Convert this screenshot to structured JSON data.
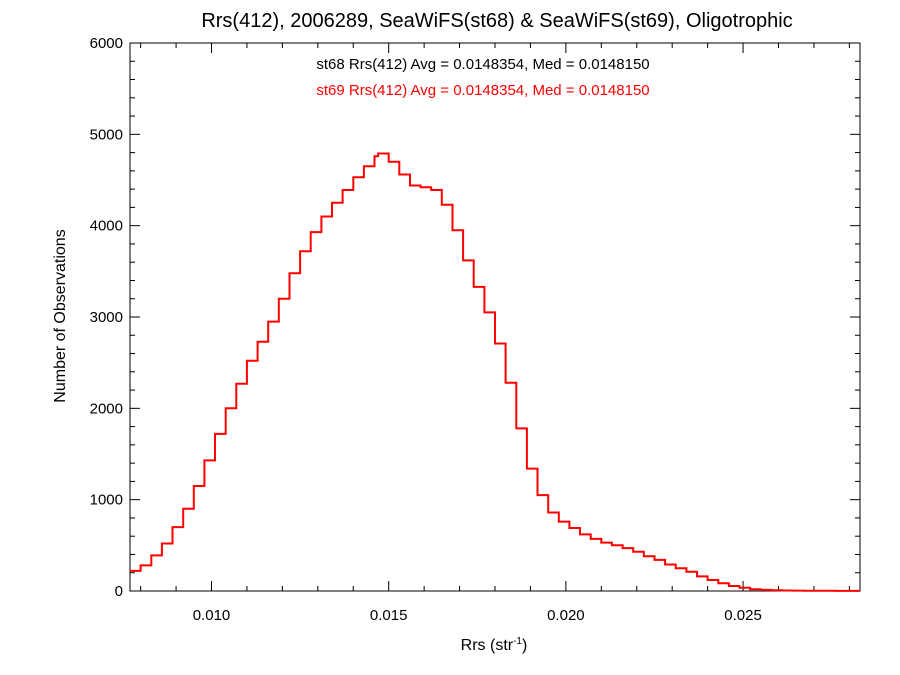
{
  "chart_data": {
    "type": "histogram-step",
    "title": "Rrs(412), 2006289, SeaWiFS(st68) & SeaWiFS(st69), Oligotrophic",
    "xlabel": "Rrs (str",
    "xlabel_sup": "-1",
    "xlabel_close": ")",
    "ylabel": "Number of Observations",
    "xlim": [
      0.0077,
      0.0283
    ],
    "ylim": [
      0,
      6000
    ],
    "x_ticks": [
      0.01,
      0.015,
      0.02,
      0.025
    ],
    "x_tick_labels": [
      "0.010",
      "0.015",
      "0.020",
      "0.025"
    ],
    "y_ticks": [
      0,
      1000,
      2000,
      3000,
      4000,
      5000,
      6000
    ],
    "y_tick_labels": [
      "0",
      "1000",
      "2000",
      "3000",
      "4000",
      "5000",
      "6000"
    ],
    "legend": [
      {
        "text": "st68 Rrs(412) Avg = 0.0148354, Med = 0.0148150",
        "color": "#000000"
      },
      {
        "text": "st69 Rrs(412) Avg = 0.0148354, Med = 0.0148150",
        "color": "#ff0000"
      }
    ],
    "series": [
      {
        "name": "st69 Rrs(412)",
        "color": "#ff0000",
        "x": [
          0.0077,
          0.008,
          0.0083,
          0.0086,
          0.0089,
          0.0092,
          0.0095,
          0.0098,
          0.0101,
          0.0104,
          0.0107,
          0.011,
          0.0113,
          0.0116,
          0.0119,
          0.0122,
          0.0125,
          0.0128,
          0.0131,
          0.0134,
          0.0137,
          0.014,
          0.0143,
          0.0146,
          0.0147,
          0.015,
          0.0153,
          0.0156,
          0.0159,
          0.0162,
          0.0165,
          0.0168,
          0.0171,
          0.0174,
          0.0177,
          0.018,
          0.0183,
          0.0186,
          0.0189,
          0.0192,
          0.0195,
          0.0198,
          0.0201,
          0.0204,
          0.0207,
          0.021,
          0.0213,
          0.0216,
          0.0219,
          0.0222,
          0.0225,
          0.0228,
          0.0231,
          0.0234,
          0.0237,
          0.024,
          0.0243,
          0.0246,
          0.0249,
          0.0252,
          0.0255,
          0.0258,
          0.0261,
          0.0264,
          0.0267,
          0.027,
          0.0273,
          0.0276,
          0.0279,
          0.0282
        ],
        "values": [
          220,
          280,
          390,
          520,
          700,
          900,
          1150,
          1430,
          1720,
          2000,
          2270,
          2520,
          2730,
          2950,
          3200,
          3480,
          3720,
          3930,
          4100,
          4250,
          4390,
          4530,
          4650,
          4760,
          4790,
          4700,
          4560,
          4440,
          4420,
          4390,
          4230,
          3950,
          3620,
          3330,
          3050,
          2710,
          2280,
          1780,
          1340,
          1050,
          860,
          760,
          690,
          620,
          570,
          530,
          500,
          470,
          430,
          380,
          340,
          290,
          250,
          210,
          160,
          120,
          85,
          55,
          35,
          20,
          12,
          8,
          5,
          4,
          3,
          2,
          2,
          1,
          1,
          1
        ]
      }
    ]
  }
}
